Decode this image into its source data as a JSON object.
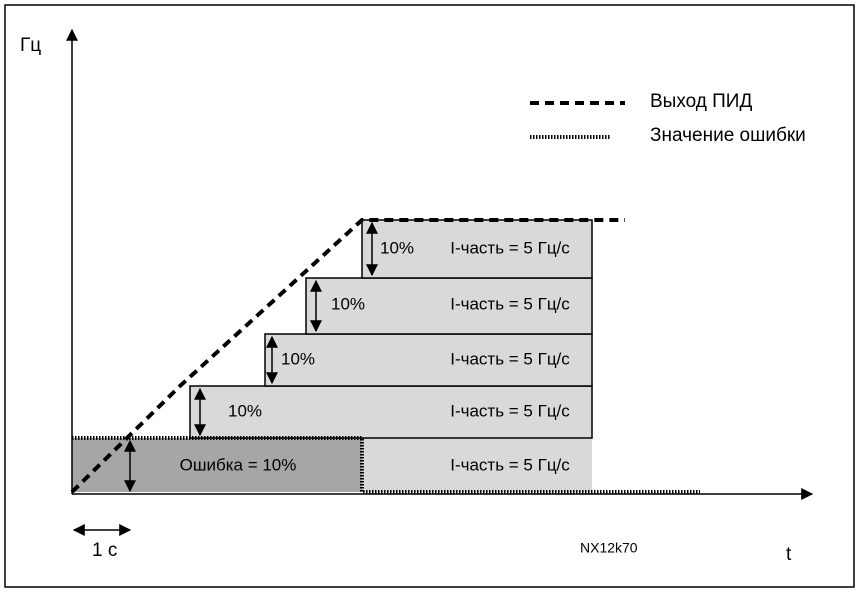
{
  "axes": {
    "y_label": "Гц",
    "x_label": "t"
  },
  "time_scale": "1 с",
  "figure_id": "NX12k70",
  "legend": {
    "pid_output": "Выход ПИД",
    "error_value": "Значение ошибки"
  },
  "error_block": {
    "label": "Ошибка = 10%",
    "part": "I-часть = 5 Гц/с"
  },
  "steps": [
    {
      "percent": "10%",
      "label": "I-часть = 5 Гц/с"
    },
    {
      "percent": "10%",
      "label": "I-часть = 5 Гц/с"
    },
    {
      "percent": "10%",
      "label": "I-часть = 5 Гц/с"
    },
    {
      "percent": "10%",
      "label": "I-часть = 5 Гц/с"
    }
  ]
}
